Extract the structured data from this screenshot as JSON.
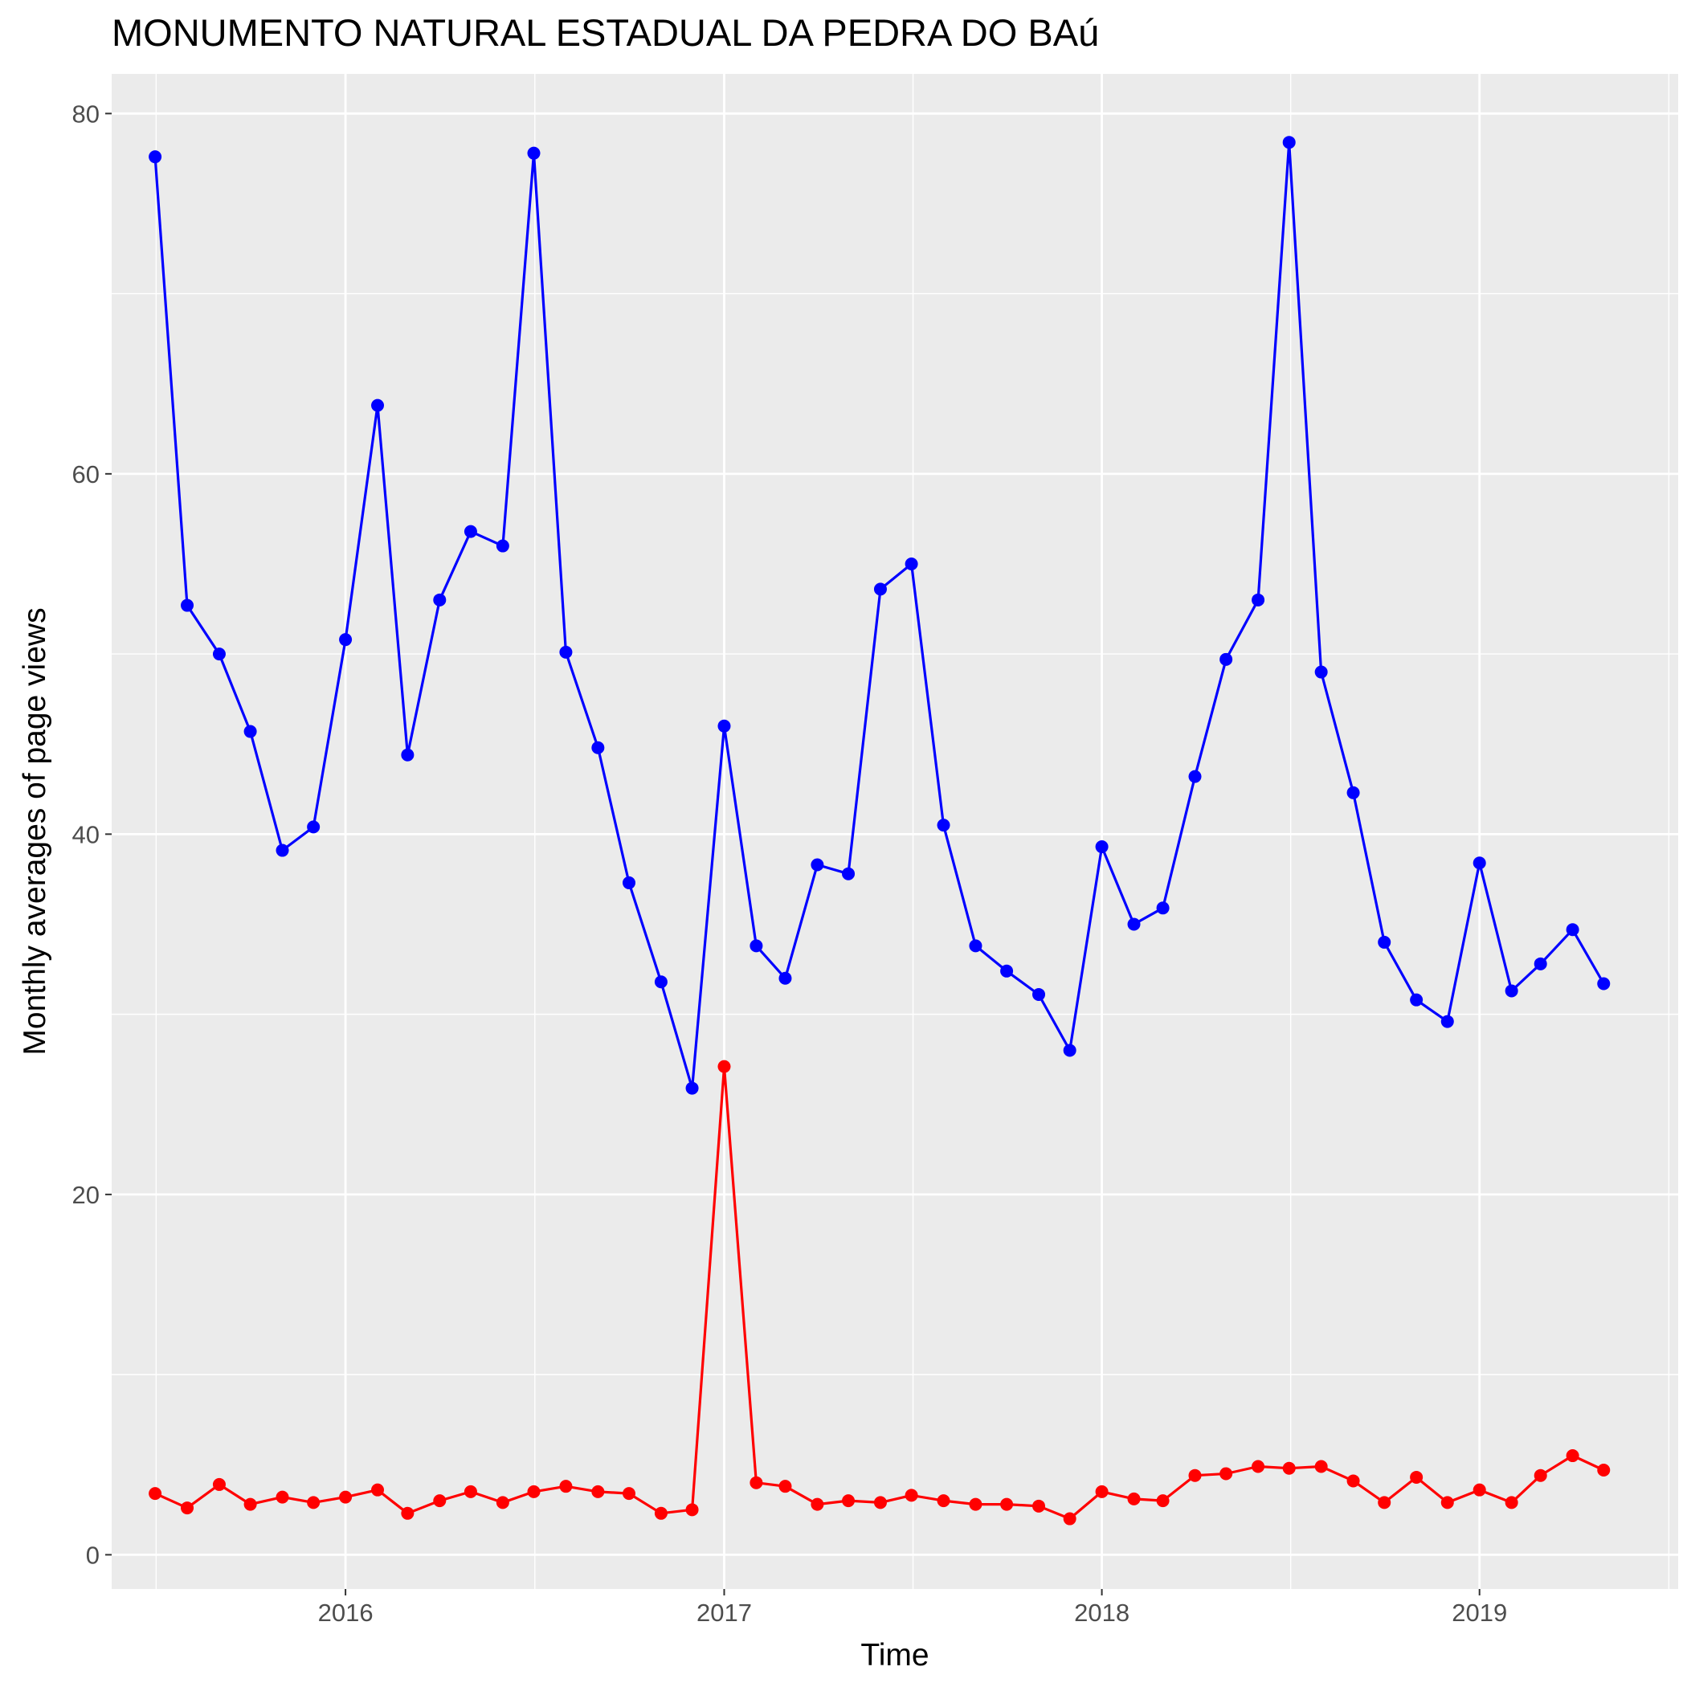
{
  "chart_data": {
    "type": "line",
    "title": "MONUMENTO NATURAL ESTADUAL DA PEDRA DO BAú",
    "xlabel": "Time",
    "ylabel": "Monthly averages of page views",
    "x_axis": {
      "type": "date",
      "ticks": [
        "2016",
        "2017",
        "2018",
        "2019"
      ],
      "range": [
        "2015-05-20",
        "2019-07-12"
      ]
    },
    "y_axis": {
      "ticks": [
        "0",
        "20",
        "40",
        "60",
        "80"
      ],
      "ylim": [
        -1.9,
        82.2
      ]
    },
    "grid": true,
    "legend": "none",
    "background": "#ebebeb",
    "grid_color": "#ffffff",
    "x": [
      "2015-07",
      "2015-08",
      "2015-09",
      "2015-10",
      "2015-11",
      "2015-12",
      "2016-01",
      "2016-02",
      "2016-03",
      "2016-04",
      "2016-05",
      "2016-06",
      "2016-07",
      "2016-08",
      "2016-09",
      "2016-10",
      "2016-11",
      "2016-12",
      "2017-01",
      "2017-02",
      "2017-03",
      "2017-04",
      "2017-05",
      "2017-06",
      "2017-07",
      "2017-08",
      "2017-09",
      "2017-10",
      "2017-11",
      "2017-12",
      "2018-01",
      "2018-02",
      "2018-03",
      "2018-04",
      "2018-05",
      "2018-06",
      "2018-07",
      "2018-08",
      "2018-09",
      "2018-10",
      "2018-11",
      "2018-12",
      "2019-01",
      "2019-02",
      "2019-03",
      "2019-04",
      "2019-05"
    ],
    "series": [
      {
        "color": "#0000ff",
        "values": [
          77.6,
          52.7,
          50.0,
          45.7,
          39.1,
          40.4,
          50.8,
          63.8,
          44.4,
          53.0,
          56.8,
          56.0,
          77.8,
          50.1,
          44.8,
          37.3,
          31.8,
          25.9,
          46.0,
          33.8,
          32.0,
          38.3,
          37.8,
          53.6,
          55.0,
          40.5,
          33.8,
          32.4,
          31.1,
          28.0,
          39.3,
          35.0,
          35.9,
          43.2,
          49.7,
          53.0,
          78.4,
          49.0,
          42.3,
          34.0,
          30.8,
          29.6,
          38.4,
          31.3,
          32.8,
          34.7,
          31.7
        ]
      },
      {
        "color": "#ff0000",
        "values": [
          3.4,
          2.6,
          3.9,
          2.8,
          3.2,
          2.9,
          3.2,
          3.6,
          2.3,
          3.0,
          3.5,
          2.9,
          3.5,
          3.8,
          3.5,
          3.4,
          2.3,
          2.5,
          27.1,
          4.0,
          3.8,
          2.8,
          3.0,
          2.9,
          3.3,
          3.0,
          2.8,
          2.8,
          2.7,
          2.0,
          3.5,
          3.1,
          3.0,
          4.4,
          4.5,
          4.9,
          4.8,
          4.9,
          4.1,
          2.9,
          4.3,
          2.9,
          3.6,
          2.9,
          4.4,
          5.5,
          4.7
        ]
      }
    ]
  }
}
